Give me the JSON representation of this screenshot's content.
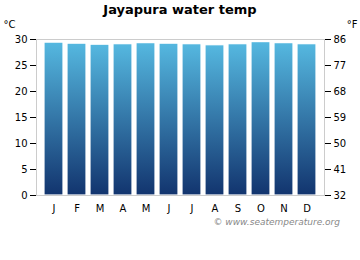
{
  "chart_data": {
    "type": "bar",
    "title": "Jayapura water temp",
    "categories": [
      "J",
      "F",
      "M",
      "A",
      "M",
      "J",
      "J",
      "A",
      "S",
      "O",
      "N",
      "D"
    ],
    "values": [
      29.4,
      29.2,
      29.0,
      29.1,
      29.3,
      29.2,
      29.1,
      28.9,
      29.1,
      29.5,
      29.3,
      29.1
    ],
    "color": [
      "#12346e",
      "#55b8e0"
    ],
    "ylabel": "°C",
    "ylim": [
      0,
      30
    ],
    "yticks": [
      0,
      5,
      10,
      15,
      20,
      25,
      30
    ],
    "y2label": "°F",
    "y2lim": [
      32,
      86
    ],
    "y2ticks": [
      32,
      41,
      50,
      59,
      68,
      77,
      86
    ],
    "grid": false,
    "annotations": [
      "© www.seatemperature.org"
    ]
  }
}
